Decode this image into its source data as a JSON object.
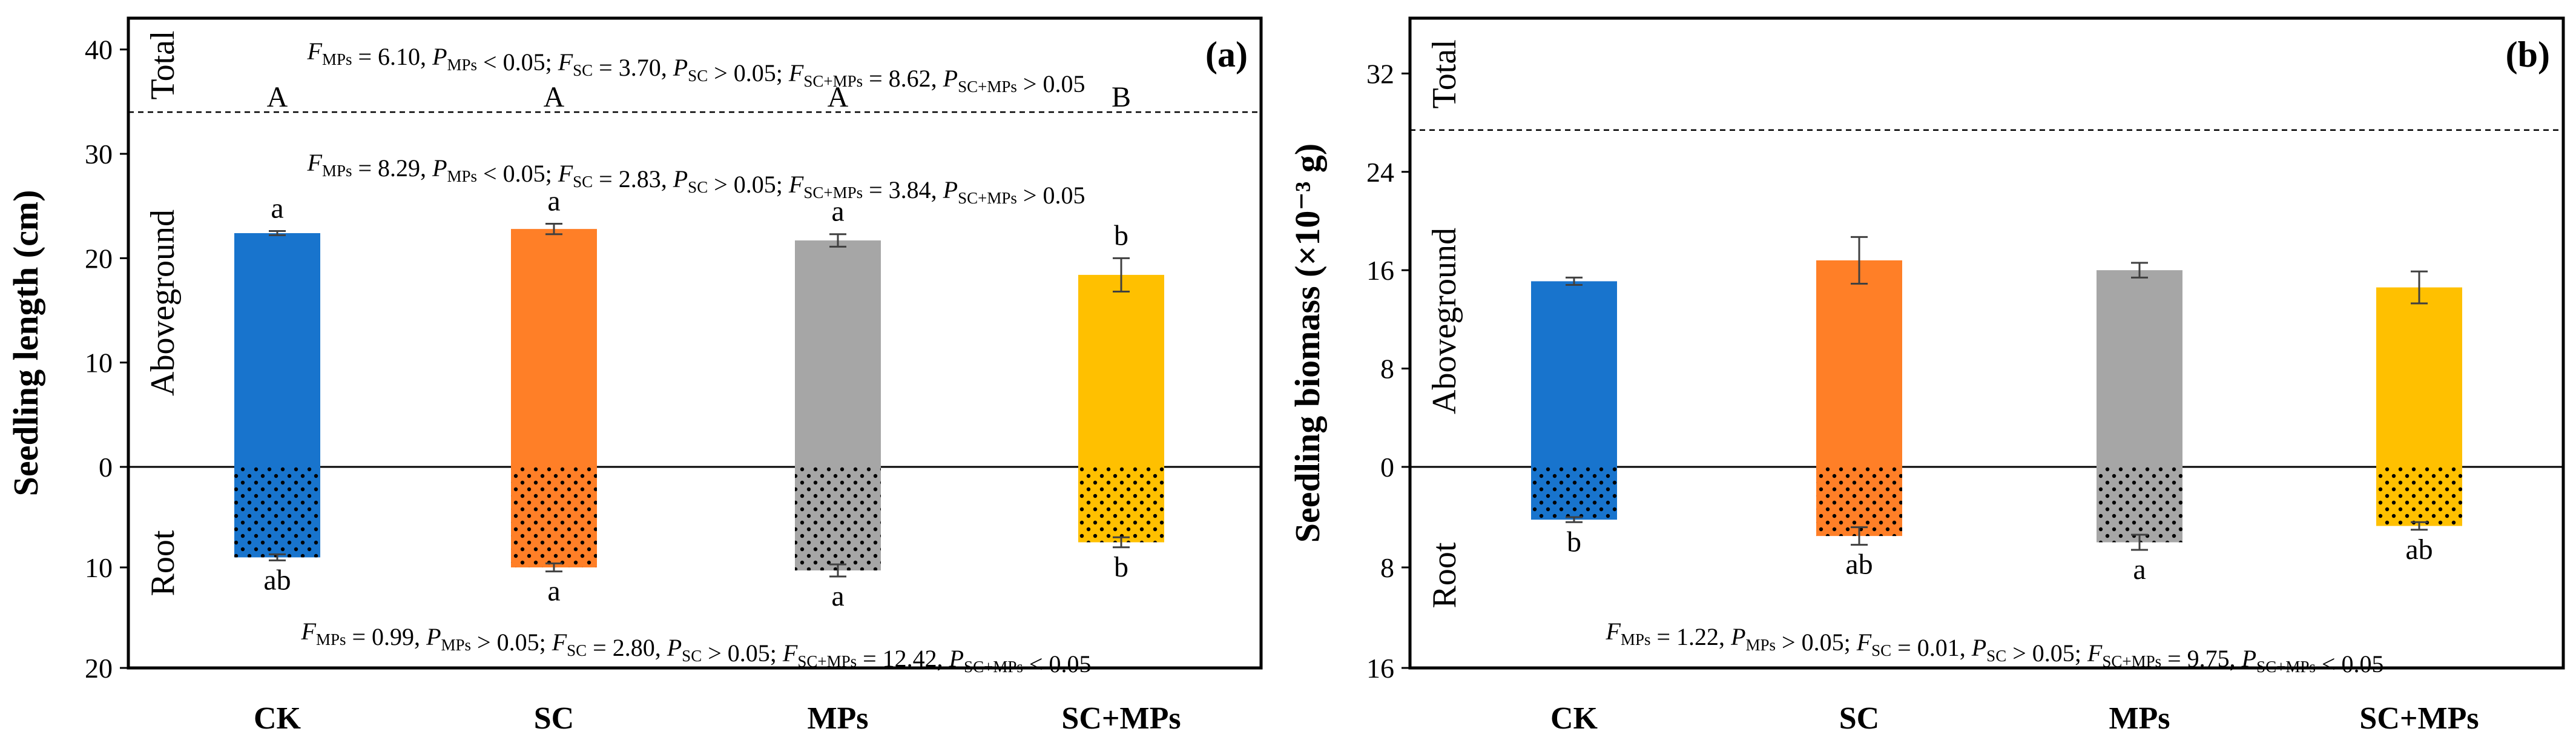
{
  "colors": {
    "CK": "#1874CD",
    "SC": "#FF7F27",
    "MPs": "#A6A6A6",
    "SC+MPs": "#FFC000",
    "axis": "#000000",
    "error_bar": "#404040",
    "background": "#FFFFFF"
  },
  "chart_data": [
    {
      "type": "bar",
      "panel_label": "(a)",
      "ylabel": "Seedling length (cm)",
      "xlabel": "",
      "categories": [
        "CK",
        "SC",
        "MPs",
        "SC+MPs"
      ],
      "section_labels": {
        "total": "Total",
        "aboveground": "Aboveground",
        "root": "Root"
      },
      "yticks_up": [
        "0",
        "10",
        "20",
        "30",
        "40"
      ],
      "yticks_down": [
        "0",
        "10",
        "20"
      ],
      "ylim_up": [
        0,
        43
      ],
      "ylim_down": [
        0,
        20
      ],
      "total_cutoff": 34,
      "series": [
        {
          "name": "Aboveground",
          "values": [
            22.4,
            22.8,
            21.7,
            18.4
          ],
          "errors": [
            0.2,
            0.5,
            0.6,
            1.6
          ],
          "letters": [
            "a",
            "a",
            "a",
            "b"
          ]
        },
        {
          "name": "Root",
          "values": [
            9.0,
            10.0,
            10.3,
            7.5
          ],
          "errors": [
            0.3,
            0.4,
            0.6,
            0.5
          ],
          "letters": [
            "ab",
            "a",
            "a",
            "b"
          ]
        }
      ],
      "total_letters": [
        "A",
        "A",
        "A",
        "B"
      ],
      "stats": {
        "total": [
          {
            "label": "MPs",
            "f": "6.10",
            "p": "< 0.05"
          },
          {
            "label": "SC",
            "f": "3.70",
            "p": "> 0.05"
          },
          {
            "label": "SC+MPs",
            "f": "8.62",
            "p": "> 0.05"
          }
        ],
        "aboveground": [
          {
            "label": "MPs",
            "f": "8.29",
            "p": "< 0.05"
          },
          {
            "label": "SC",
            "f": "2.83",
            "p": "> 0.05"
          },
          {
            "label": "SC+MPs",
            "f": "3.84",
            "p": "> 0.05"
          }
        ],
        "root": [
          {
            "label": "MPs",
            "f": "0.99",
            "p": "> 0.05"
          },
          {
            "label": "SC",
            "f": "2.80",
            "p": "> 0.05"
          },
          {
            "label": "SC+MPs",
            "f": "12.42",
            "p": "< 0.05"
          }
        ]
      }
    },
    {
      "type": "bar",
      "panel_label": "(b)",
      "ylabel": "Seedling biomass (×10⁻³ g)",
      "xlabel": "",
      "categories": [
        "CK",
        "SC",
        "MPs",
        "SC+MPs"
      ],
      "section_labels": {
        "total": "Total",
        "aboveground": "Aboveground",
        "root": "Root"
      },
      "yticks_up": [
        "0",
        "8",
        "16",
        "24",
        "32"
      ],
      "yticks_down": [
        "0",
        "8",
        "16"
      ],
      "ylim_up": [
        0,
        36.5
      ],
      "ylim_down": [
        0,
        16
      ],
      "total_cutoff": 27.4,
      "series": [
        {
          "name": "Aboveground",
          "values": [
            15.1,
            16.8,
            16.0,
            14.6
          ],
          "errors": [
            0.3,
            1.9,
            0.6,
            1.3
          ],
          "letters": []
        },
        {
          "name": "Root",
          "values": [
            4.2,
            5.5,
            6.0,
            4.7
          ],
          "errors": [
            0.2,
            0.7,
            0.6,
            0.3
          ],
          "letters": [
            "b",
            "ab",
            "a",
            "ab"
          ]
        }
      ],
      "total_letters": [],
      "stats": {
        "total": [],
        "aboveground": [],
        "root": [
          {
            "label": "MPs",
            "f": "1.22",
            "p": "> 0.05"
          },
          {
            "label": "SC",
            "f": "0.01",
            "p": "> 0.05"
          },
          {
            "label": "SC+MPs",
            "f": "9.75",
            "p": "< 0.05"
          }
        ]
      }
    }
  ]
}
